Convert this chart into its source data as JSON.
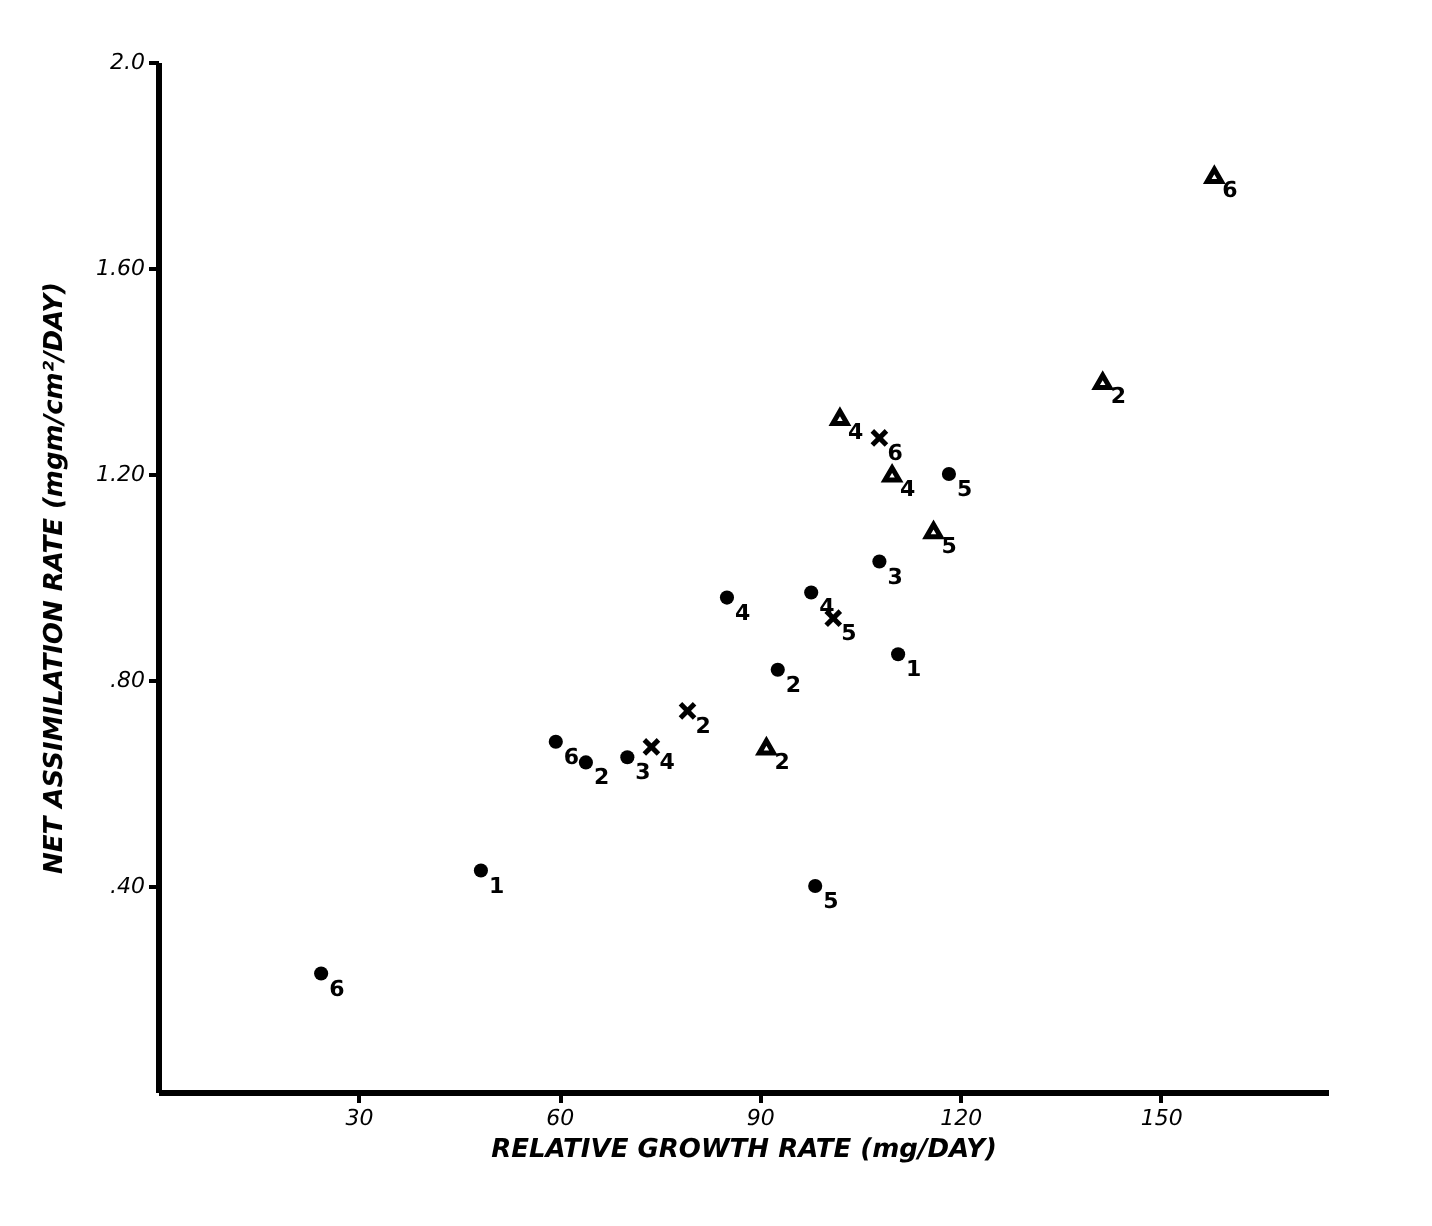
{
  "chart_data": {
    "type": "scatter",
    "xlabel": "RELATIVE GROWTH RATE (mg/DAY)",
    "ylabel": "NET ASSIMILATION RATE (mgm/cm²/DAY)",
    "xlim": [
      0,
      175
    ],
    "xticks": [
      30,
      60,
      90,
      120,
      150
    ],
    "ylim": [
      0,
      2.0
    ],
    "yticks": [
      {
        "value": 0.4,
        "label": ".40"
      },
      {
        "value": 0.8,
        "label": ".80"
      },
      {
        "value": 1.2,
        "label": "1.20"
      },
      {
        "value": 1.6,
        "label": "1.60"
      },
      {
        "value": 2.0,
        "label": "2.0"
      }
    ],
    "grid": false,
    "series": [
      {
        "marker": "triangle",
        "color": "#000000",
        "x": [
          158,
          141.3,
          102,
          109.8,
          116,
          91
        ],
        "values": [
          1.78,
          1.38,
          1.31,
          1.2,
          1.09,
          0.67
        ]
      },
      {
        "marker": "circle",
        "color": "#000000",
        "x": [
          118.3,
          107.9,
          97.7,
          110.7,
          92.7,
          24.4
        ],
        "values": [
          1.2,
          1.03,
          0.97,
          0.85,
          0.82,
          0.23
        ]
      },
      {
        "marker": "cross",
        "color": "#000000",
        "x": [
          107.9,
          101,
          79.2,
          73.8
        ],
        "values": [
          1.27,
          0.92,
          0.74,
          0.67
        ]
      },
      {
        "marker": "circle",
        "color": "#000000",
        "x": [
          85.1,
          48.3,
          59.5,
          64,
          98.3,
          70.2
        ],
        "values": [
          0.96,
          0.43,
          0.68,
          0.64,
          0.4,
          0.65
        ]
      }
    ],
    "annotations": [
      {
        "text": "6",
        "x": 158,
        "y": 1.78
      },
      {
        "text": "2",
        "x": 141.3,
        "y": 1.38
      },
      {
        "text": "4",
        "x": 102,
        "y": 1.31
      },
      {
        "text": "4",
        "x": 109.8,
        "y": 1.2
      },
      {
        "text": "5",
        "x": 116,
        "y": 1.09
      },
      {
        "text": "2",
        "x": 91,
        "y": 0.67
      },
      {
        "text": "5",
        "x": 118.3,
        "y": 1.2
      },
      {
        "text": "3",
        "x": 107.9,
        "y": 1.03
      },
      {
        "text": "4",
        "x": 97.7,
        "y": 0.97
      },
      {
        "text": "1",
        "x": 110.7,
        "y": 0.85
      },
      {
        "text": "2",
        "x": 92.7,
        "y": 0.82
      },
      {
        "text": "6",
        "x": 24.4,
        "y": 0.23
      },
      {
        "text": "6",
        "x": 107.9,
        "y": 1.27
      },
      {
        "text": "5",
        "x": 101,
        "y": 0.92
      },
      {
        "text": "2",
        "x": 79.2,
        "y": 0.74
      },
      {
        "text": "4",
        "x": 73.8,
        "y": 0.67
      },
      {
        "text": "4",
        "x": 85.1,
        "y": 0.96
      },
      {
        "text": "1",
        "x": 48.3,
        "y": 0.43
      },
      {
        "text": "6",
        "x": 59.5,
        "y": 0.68
      },
      {
        "text": "2",
        "x": 64,
        "y": 0.64
      },
      {
        "text": "5",
        "x": 98.3,
        "y": 0.4
      },
      {
        "text": "3",
        "x": 70.2,
        "y": 0.65
      }
    ]
  }
}
